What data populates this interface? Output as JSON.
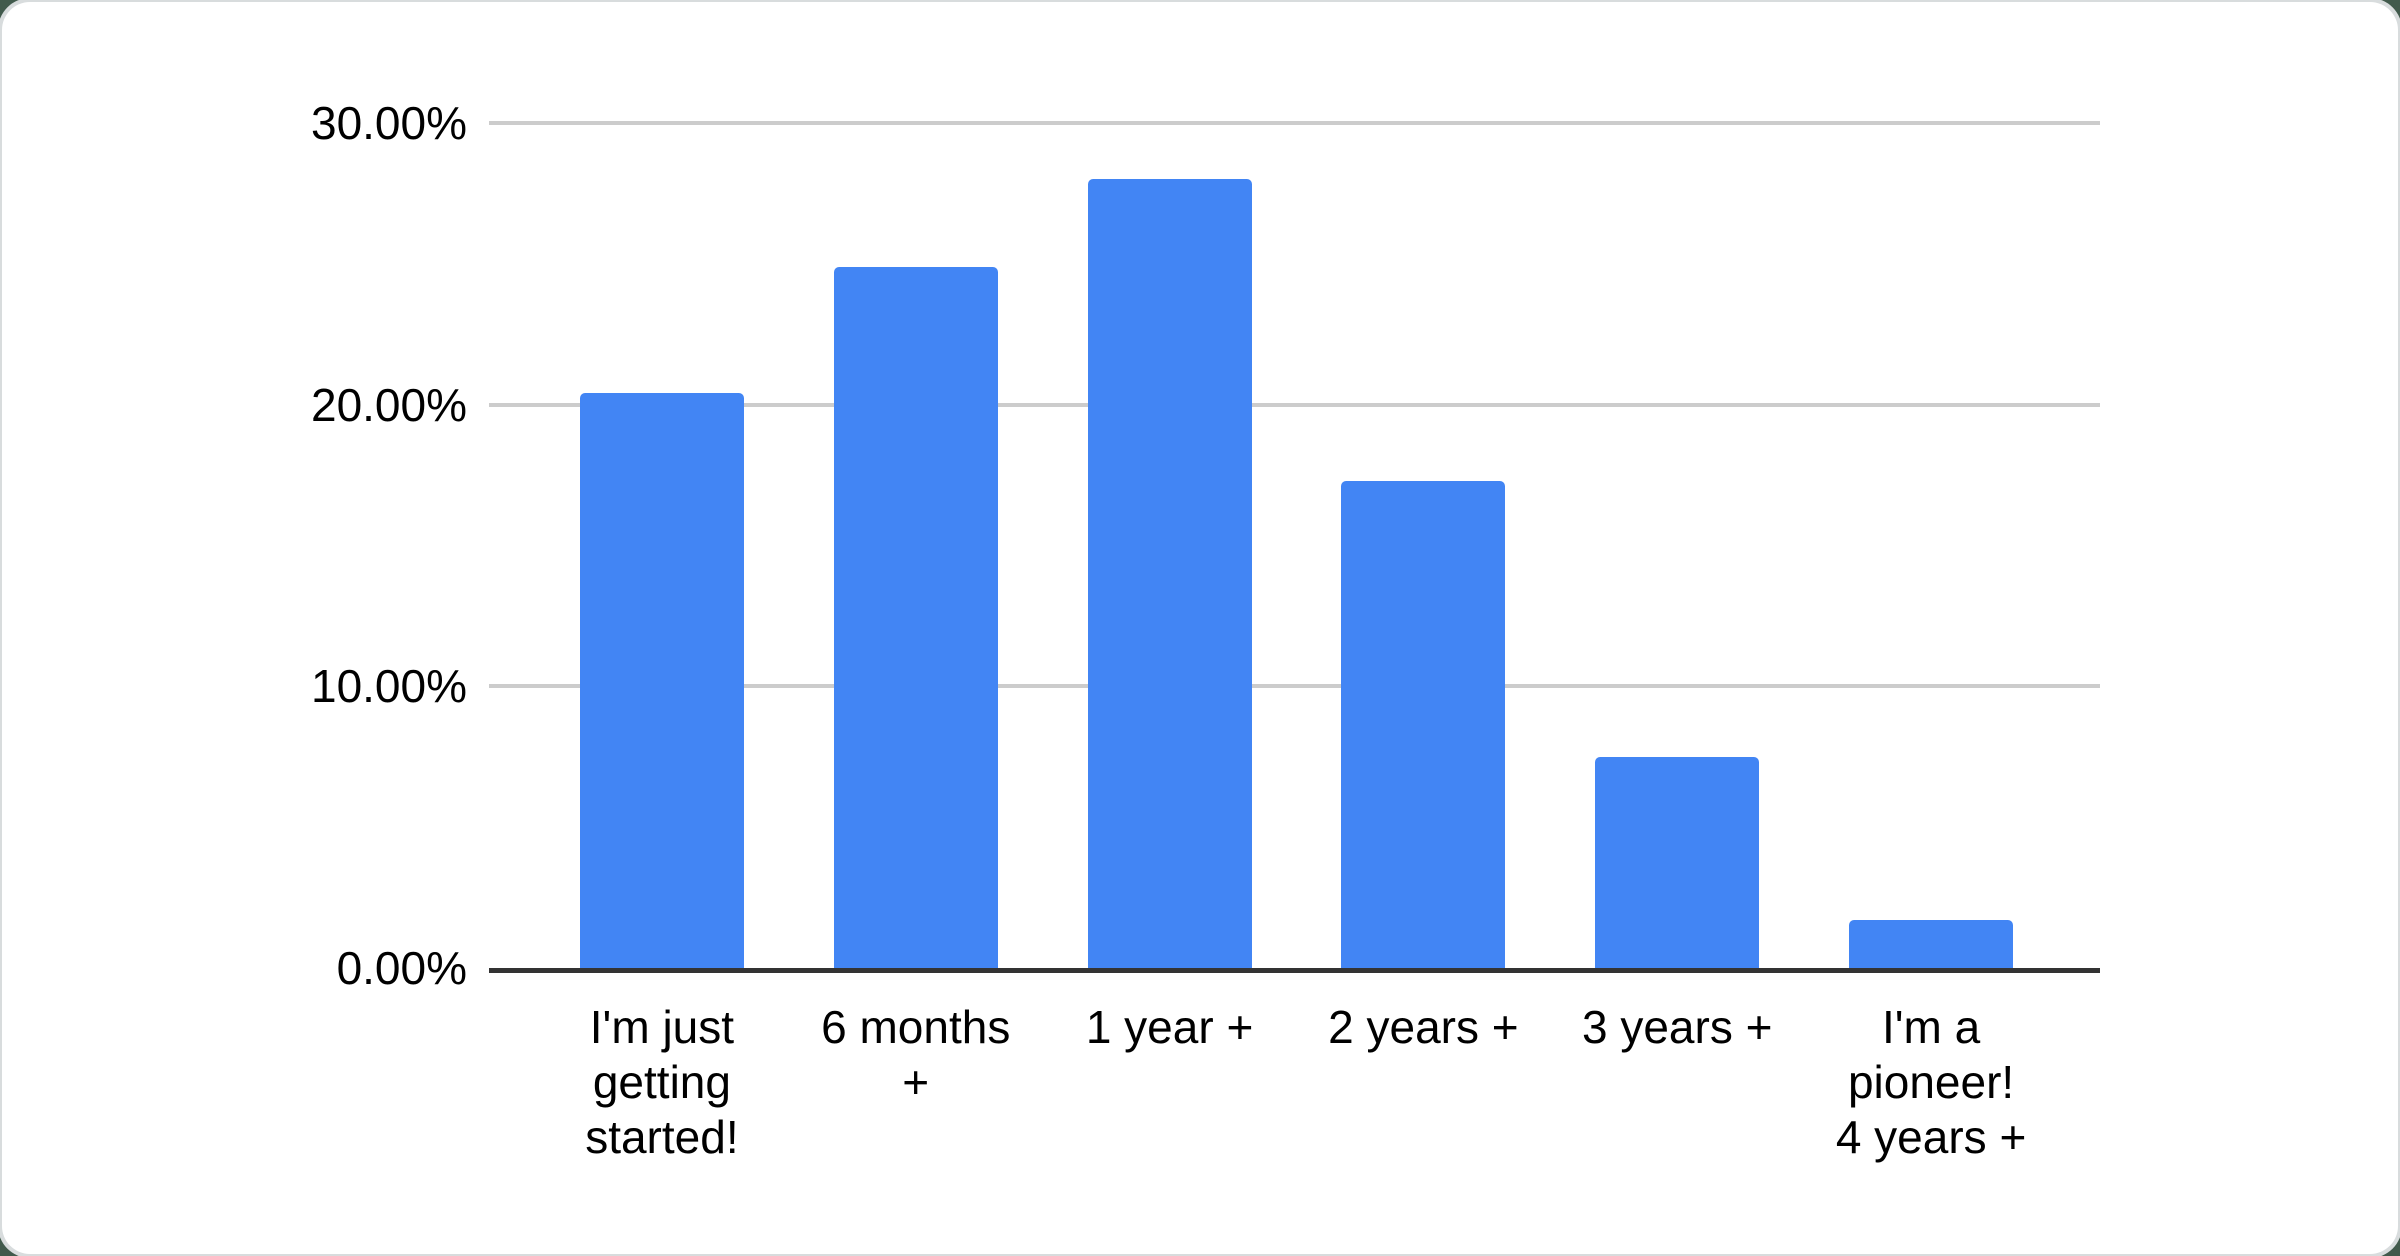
{
  "page": {
    "background_color": "#415a4c",
    "card_color": "#ffffff",
    "card_edge_color": "#d8dcdd"
  },
  "chart_data": {
    "type": "bar",
    "title": "",
    "xlabel": "",
    "ylabel": "",
    "categories": [
      "I'm just\ngetting\nstarted!",
      "6 months\n+",
      "1 year +",
      "2 years +",
      "3 years +",
      "I'm a\npioneer!\n4 years +"
    ],
    "values": [
      20.4,
      24.9,
      28.0,
      17.3,
      7.5,
      1.7
    ],
    "value_unit": "percent",
    "ylim": [
      0,
      30
    ],
    "y_ticks": [
      {
        "value": 30,
        "label": "30.00%"
      },
      {
        "value": 20,
        "label": "20.00%"
      },
      {
        "value": 10,
        "label": "10.00%"
      },
      {
        "value": 0,
        "label": "0.00%"
      }
    ],
    "grid": true,
    "legend_position": "none",
    "bar_color": "#4285f4",
    "gridline_color": "#cccccc",
    "axis_color": "#333333",
    "label_color": "#000000"
  }
}
